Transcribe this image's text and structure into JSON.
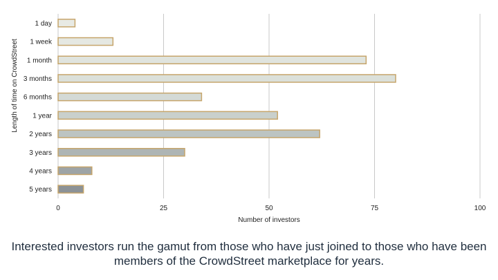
{
  "chart_data": {
    "type": "bar",
    "orientation": "horizontal",
    "categories": [
      "1 day",
      "1 week",
      "1 month",
      "3 months",
      "6 months",
      "1 year",
      "2 years",
      "3 years",
      "4 years",
      "5 years"
    ],
    "values": [
      4,
      13,
      73,
      80,
      34,
      52,
      62,
      30,
      8,
      6
    ],
    "xlabel": "Number of investors",
    "ylabel": "Length of time on CrowdStreet",
    "xlim": [
      0,
      100
    ],
    "xticks": [
      0,
      25,
      50,
      75,
      100
    ],
    "grid": true,
    "bar_colors": [
      "#e8eae4",
      "#e5e8e2",
      "#e0e4de",
      "#dbe0da",
      "#d4dad6",
      "#c9d0cc",
      "#bcc4c2",
      "#aeb5b4",
      "#9ea4a6",
      "#8c9296"
    ],
    "bar_border_color": "#c6a56b"
  },
  "caption": "Interested investors run the gamut from those who have just joined to those who have been members of the CrowdStreet marketplace for years."
}
